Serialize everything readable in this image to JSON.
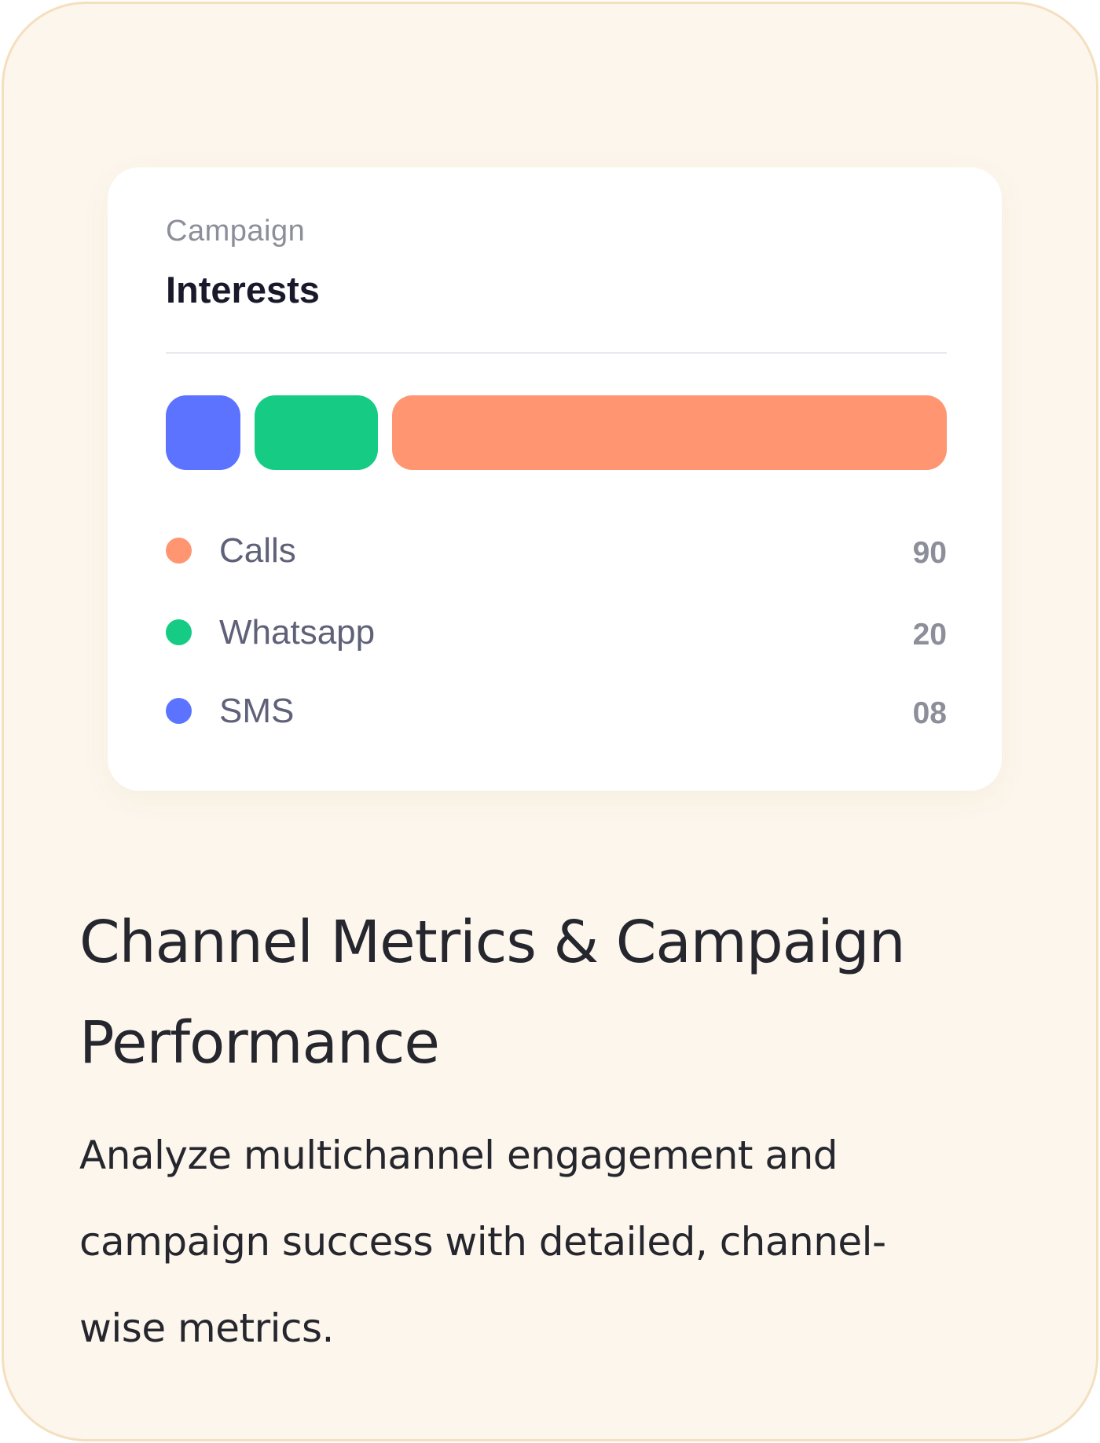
{
  "widget": {
    "subtitle": "Campaign",
    "title": "Interests",
    "channels": [
      {
        "label": "Calls",
        "value": "90",
        "color": "#ff9571"
      },
      {
        "label": "Whatsapp",
        "value": "20",
        "color": "#16cc84"
      },
      {
        "label": "SMS",
        "value": "08",
        "color": "#5c73ff"
      }
    ]
  },
  "chart_data": {
    "type": "bar",
    "orientation": "horizontal-stacked",
    "categories": [
      "SMS",
      "Whatsapp",
      "Calls"
    ],
    "values": [
      8,
      20,
      90
    ],
    "colors": [
      "#5c73ff",
      "#16cc84",
      "#ff9571"
    ]
  },
  "feature": {
    "heading": "Channel Metrics & Campaign Performance",
    "description": "Analyze multichannel engagement and campaign success with detailed, channel-wise metrics."
  },
  "colors": {
    "card_background": "#fdf6ec",
    "card_border": "#f4dfbf",
    "widget_background": "#ffffff",
    "heading_text": "#25262e"
  }
}
